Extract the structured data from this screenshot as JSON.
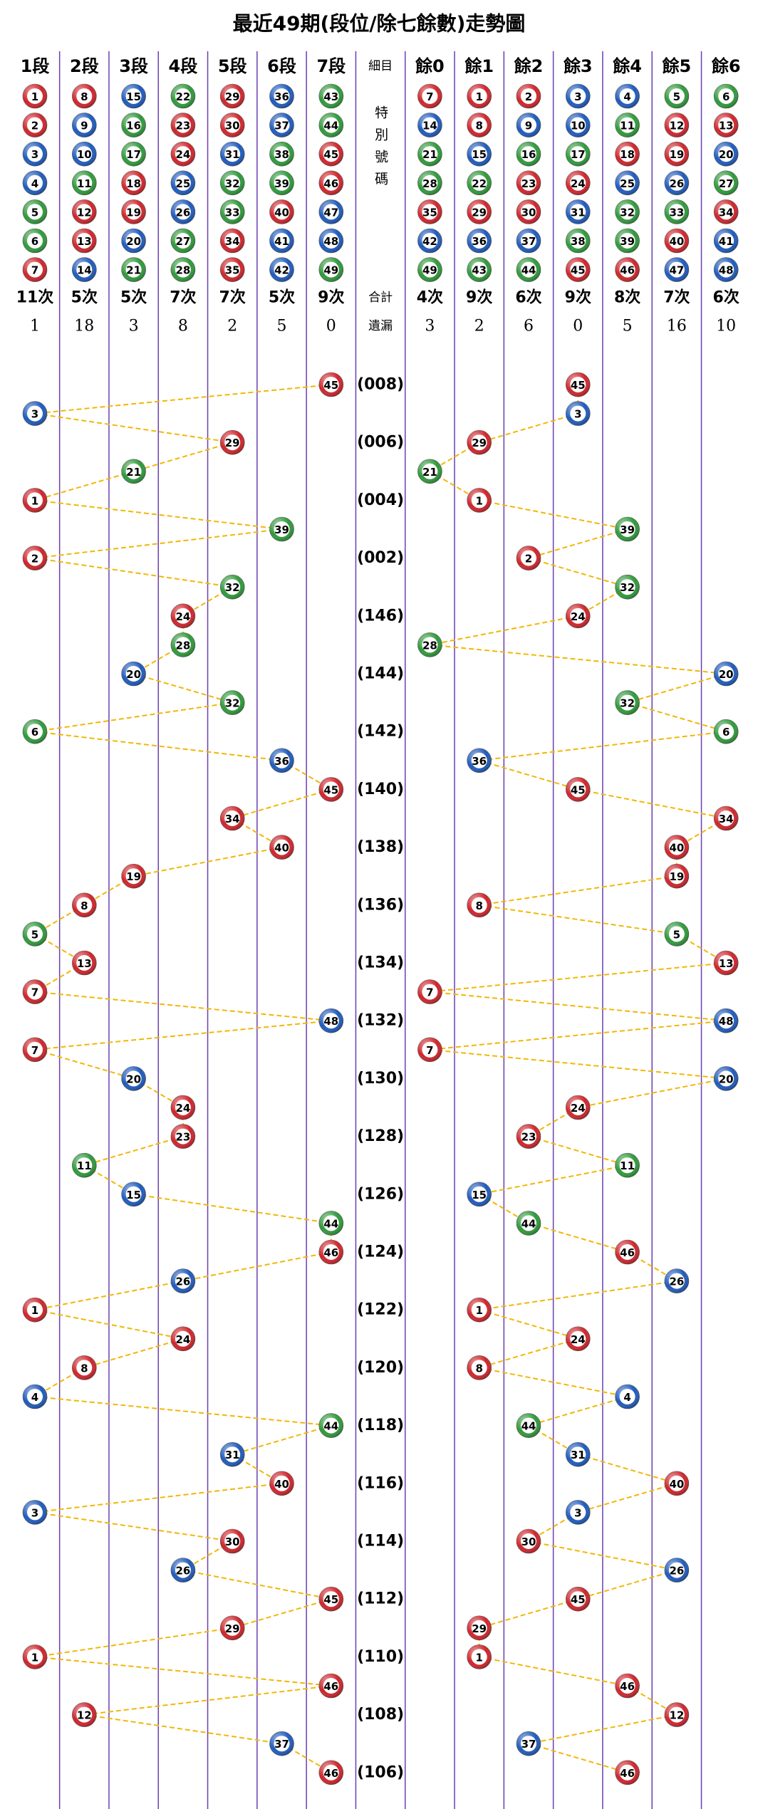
{
  "title": "最近49期(段位/除七餘數)走勢圖",
  "segments": [
    {
      "label": "1段",
      "numbers": [
        1,
        2,
        3,
        4,
        5,
        6,
        7
      ],
      "count": "11次",
      "missing": 1
    },
    {
      "label": "2段",
      "numbers": [
        8,
        9,
        10,
        11,
        12,
        13,
        14
      ],
      "count": "5次",
      "missing": 18
    },
    {
      "label": "3段",
      "numbers": [
        15,
        16,
        17,
        18,
        19,
        20,
        21
      ],
      "count": "5次",
      "missing": 3
    },
    {
      "label": "4段",
      "numbers": [
        22,
        23,
        24,
        25,
        26,
        27,
        28
      ],
      "count": "7次",
      "missing": 8
    },
    {
      "label": "5段",
      "numbers": [
        29,
        30,
        31,
        32,
        33,
        34,
        35
      ],
      "count": "7次",
      "missing": 2
    },
    {
      "label": "6段",
      "numbers": [
        36,
        37,
        38,
        39,
        40,
        41,
        42
      ],
      "count": "5次",
      "missing": 5
    },
    {
      "label": "7段",
      "numbers": [
        43,
        44,
        45,
        46,
        47,
        48,
        49
      ],
      "count": "9次",
      "missing": 0
    }
  ],
  "middle": {
    "label": "細目",
    "special": "特別號碼",
    "count": "合計",
    "missing": "遺漏"
  },
  "remainders": [
    {
      "label": "餘0",
      "numbers": [
        7,
        14,
        21,
        28,
        35,
        42,
        49
      ],
      "count": "4次",
      "missing": 3
    },
    {
      "label": "餘1",
      "numbers": [
        1,
        8,
        15,
        22,
        29,
        36,
        43
      ],
      "count": "9次",
      "missing": 2
    },
    {
      "label": "餘2",
      "numbers": [
        2,
        9,
        16,
        23,
        30,
        37,
        44
      ],
      "count": "6次",
      "missing": 6
    },
    {
      "label": "餘3",
      "numbers": [
        3,
        10,
        17,
        24,
        31,
        38,
        45
      ],
      "count": "9次",
      "missing": 0
    },
    {
      "label": "餘4",
      "numbers": [
        4,
        11,
        18,
        25,
        32,
        39,
        46
      ],
      "count": "8次",
      "missing": 5
    },
    {
      "label": "餘5",
      "numbers": [
        5,
        12,
        19,
        26,
        33,
        40,
        47
      ],
      "count": "7次",
      "missing": 16
    },
    {
      "label": "餘6",
      "numbers": [
        6,
        13,
        20,
        27,
        34,
        41,
        48
      ],
      "count": "6次",
      "missing": 10
    }
  ],
  "draws": {
    "periods": [
      "(008)",
      null,
      "(006)",
      null,
      "(004)",
      null,
      "(002)",
      null,
      "(146)",
      null,
      "(144)",
      null,
      "(142)",
      null,
      "(140)",
      null,
      "(138)",
      null,
      "(136)",
      null,
      "(134)",
      null,
      "(132)",
      null,
      "(130)",
      null,
      "(128)",
      null,
      "(126)",
      null,
      "(124)",
      null,
      "(122)",
      null,
      "(120)",
      null,
      "(118)",
      null,
      "(116)",
      null,
      "(114)",
      null,
      "(112)",
      null,
      "(110)",
      null,
      "(108)",
      null,
      "(106)"
    ],
    "numbers": [
      45,
      3,
      29,
      21,
      1,
      39,
      2,
      32,
      24,
      28,
      20,
      32,
      6,
      36,
      45,
      34,
      40,
      19,
      8,
      5,
      13,
      7,
      48,
      7,
      20,
      24,
      23,
      11,
      15,
      44,
      46,
      26,
      1,
      24,
      8,
      4,
      44,
      31,
      40,
      3,
      30,
      26,
      45,
      29,
      1,
      46,
      12,
      37,
      46
    ]
  },
  "line_color": "#f2b705",
  "ball_colors": {
    "red": "#d0252b",
    "blue": "#1f5bbd",
    "green": "#2f9a3a"
  },
  "color_groups": {
    "red": [
      1,
      2,
      7,
      8,
      12,
      13,
      18,
      19,
      23,
      24,
      29,
      30,
      34,
      35,
      40,
      45,
      46
    ],
    "blue": [
      3,
      4,
      9,
      10,
      14,
      15,
      20,
      25,
      26,
      31,
      36,
      37,
      41,
      42,
      47,
      48
    ],
    "green": [
      5,
      6,
      11,
      16,
      17,
      21,
      22,
      27,
      28,
      32,
      33,
      38,
      39,
      43,
      44,
      49
    ]
  }
}
